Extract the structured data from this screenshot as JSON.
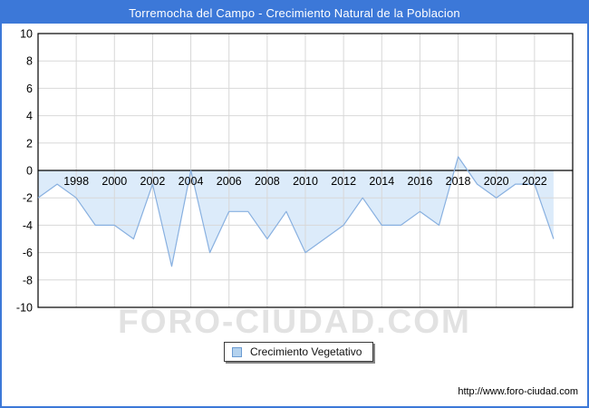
{
  "header": {
    "title": "Torremocha del Campo - Crecimiento Natural de la Poblacion"
  },
  "chart_data": {
    "type": "area",
    "title": "Torremocha del Campo - Crecimiento Natural de la Poblacion",
    "x": [
      1996,
      1997,
      1998,
      1999,
      2000,
      2001,
      2002,
      2003,
      2004,
      2005,
      2006,
      2007,
      2008,
      2009,
      2010,
      2011,
      2012,
      2013,
      2014,
      2015,
      2016,
      2017,
      2018,
      2019,
      2020,
      2021,
      2022,
      2023
    ],
    "series": [
      {
        "name": "Crecimiento Vegetativo",
        "values": [
          -2,
          -1,
          -2,
          -4,
          -4,
          -5,
          -1,
          -7,
          0,
          -6,
          -3,
          -3,
          -5,
          -3,
          -6,
          -5,
          -4,
          -2,
          -4,
          -4,
          -3,
          -4,
          1,
          -1,
          -2,
          -1,
          -1,
          -5
        ]
      }
    ],
    "ylim": [
      -10,
      10
    ],
    "yticks": [
      10,
      8,
      6,
      4,
      2,
      0,
      -2,
      -4,
      -6,
      -8,
      -10
    ],
    "xticks": [
      1998,
      2000,
      2002,
      2004,
      2006,
      2008,
      2010,
      2012,
      2014,
      2016,
      2018,
      2020,
      2022
    ],
    "grid": true,
    "legend_position": "bottom-center",
    "colors": {
      "frame_blue": "#3c78d8",
      "area_fill": "#dcebfa",
      "line": "#88b0e0",
      "grid": "#d8d8d8",
      "axis": "#000000",
      "tick_text": "#000000"
    }
  },
  "legend": {
    "label": "Crecimiento Vegetativo"
  },
  "watermark": {
    "text": "FORO-CIUDAD.COM"
  },
  "footer": {
    "url": "http://www.foro-ciudad.com"
  }
}
